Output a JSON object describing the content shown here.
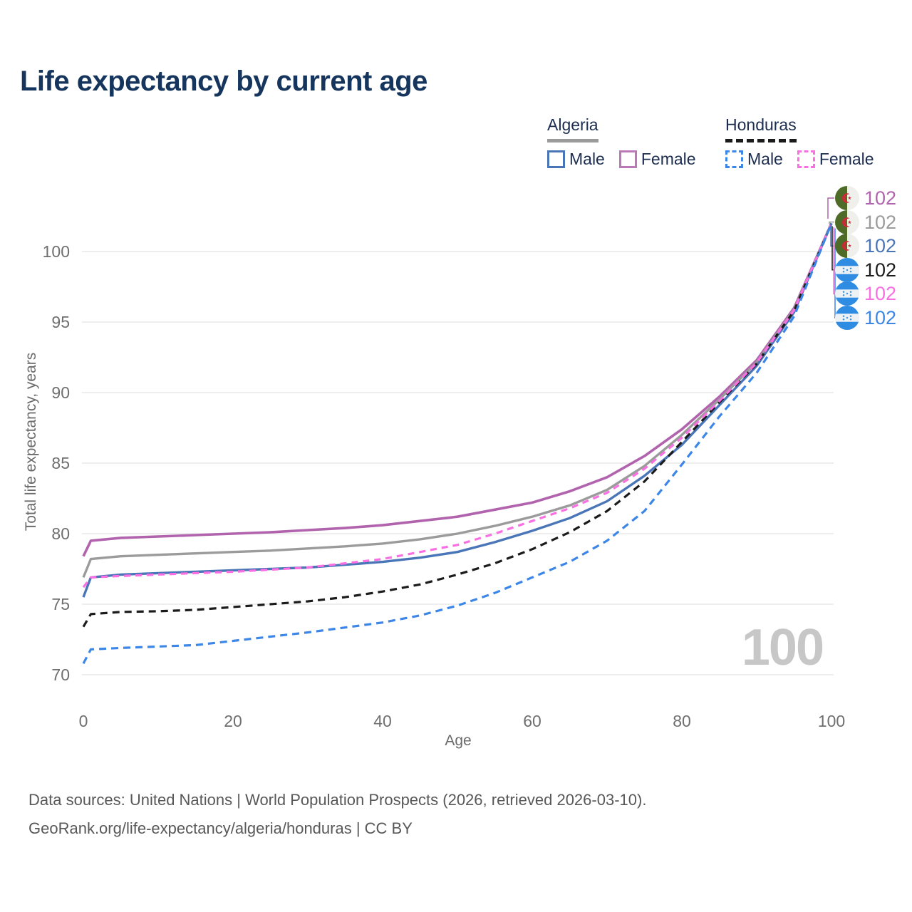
{
  "title": "Life expectancy by current age",
  "legend": {
    "algeria": {
      "label": "Algeria",
      "male_label": "Male",
      "female_label": "Female"
    },
    "honduras": {
      "label": "Honduras",
      "male_label": "Male",
      "female_label": "Female"
    }
  },
  "watermark": "100",
  "footer": {
    "line1": "Data sources: United Nations | World Population Prospects (2026, retrieved 2026-03-10).",
    "line2": "GeoRank.org/life-expectancy/algeria/honduras | CC BY"
  },
  "chart_data": {
    "type": "line",
    "title": "Life expectancy by current age",
    "xlabel": "Age",
    "ylabel": "Total life expectancy, years",
    "xlim": [
      0,
      100
    ],
    "ylim": [
      70,
      102
    ],
    "xticks": [
      0,
      20,
      40,
      60,
      80,
      100
    ],
    "yticks": [
      70,
      75,
      80,
      85,
      90,
      95,
      100
    ],
    "grid": "horizontal",
    "legend_position": "top-right",
    "colors": {
      "algeria_female": "#b164ad",
      "algeria_all": "#9b9b9b",
      "algeria_male": "#4a76b8",
      "honduras_all": "#1b1b1b",
      "honduras_female": "#fa6fe2",
      "honduras_male": "#3c86e8",
      "grid": "#e9e9e9",
      "title_text": "#16355d",
      "axis_text": "#6f6f6f",
      "watermark_text": "#c7c7c7"
    },
    "series": [
      {
        "id": "algeria-female",
        "country": "Algeria",
        "sex": "Female",
        "style": "solid",
        "color": "#b164ad",
        "width": 3.6,
        "dash": null,
        "end_label": "102",
        "flag": "algeria-flag-icon",
        "points": [
          [
            0,
            78.4
          ],
          [
            1,
            79.5
          ],
          [
            5,
            79.7
          ],
          [
            10,
            79.8
          ],
          [
            15,
            79.9
          ],
          [
            20,
            80.0
          ],
          [
            25,
            80.1
          ],
          [
            30,
            80.25
          ],
          [
            35,
            80.4
          ],
          [
            40,
            80.6
          ],
          [
            45,
            80.9
          ],
          [
            50,
            81.2
          ],
          [
            55,
            81.7
          ],
          [
            60,
            82.2
          ],
          [
            65,
            83.0
          ],
          [
            70,
            84.0
          ],
          [
            75,
            85.5
          ],
          [
            80,
            87.4
          ],
          [
            85,
            89.7
          ],
          [
            90,
            92.3
          ],
          [
            95,
            96.0
          ],
          [
            100,
            102
          ]
        ]
      },
      {
        "id": "algeria-all",
        "country": "Algeria",
        "sex": "All",
        "style": "solid",
        "color": "#9b9b9b",
        "width": 3.4,
        "dash": null,
        "end_label": "102",
        "flag": "algeria-flag-icon",
        "points": [
          [
            0,
            76.9
          ],
          [
            1,
            78.2
          ],
          [
            5,
            78.4
          ],
          [
            10,
            78.5
          ],
          [
            15,
            78.6
          ],
          [
            20,
            78.7
          ],
          [
            25,
            78.8
          ],
          [
            30,
            78.95
          ],
          [
            35,
            79.1
          ],
          [
            40,
            79.3
          ],
          [
            45,
            79.6
          ],
          [
            50,
            80.0
          ],
          [
            55,
            80.55
          ],
          [
            60,
            81.2
          ],
          [
            65,
            82.0
          ],
          [
            70,
            83.1
          ],
          [
            75,
            84.8
          ],
          [
            80,
            87.0
          ],
          [
            85,
            89.5
          ],
          [
            90,
            92.15
          ],
          [
            95,
            95.9
          ],
          [
            100,
            102
          ]
        ]
      },
      {
        "id": "algeria-male",
        "country": "Algeria",
        "sex": "Male",
        "style": "solid",
        "color": "#4a76b8",
        "width": 3.4,
        "dash": null,
        "end_label": "102",
        "flag": "algeria-flag-icon",
        "points": [
          [
            0,
            75.5
          ],
          [
            1,
            76.9
          ],
          [
            5,
            77.1
          ],
          [
            10,
            77.2
          ],
          [
            15,
            77.3
          ],
          [
            20,
            77.4
          ],
          [
            25,
            77.5
          ],
          [
            30,
            77.6
          ],
          [
            35,
            77.8
          ],
          [
            40,
            78.0
          ],
          [
            45,
            78.3
          ],
          [
            50,
            78.7
          ],
          [
            55,
            79.4
          ],
          [
            60,
            80.2
          ],
          [
            65,
            81.1
          ],
          [
            70,
            82.3
          ],
          [
            75,
            84.1
          ],
          [
            80,
            86.3
          ],
          [
            85,
            89.1
          ],
          [
            90,
            91.9
          ],
          [
            95,
            95.7
          ],
          [
            100,
            102
          ]
        ]
      },
      {
        "id": "honduras-all",
        "country": "Honduras",
        "sex": "All",
        "style": "dashed",
        "color": "#1b1b1b",
        "width": 3.2,
        "dash": "10 7",
        "end_label": "102",
        "flag": "honduras-flag-icon",
        "points": [
          [
            0,
            73.4
          ],
          [
            1,
            74.3
          ],
          [
            5,
            74.45
          ],
          [
            10,
            74.5
          ],
          [
            15,
            74.6
          ],
          [
            20,
            74.8
          ],
          [
            25,
            75.0
          ],
          [
            30,
            75.2
          ],
          [
            35,
            75.5
          ],
          [
            40,
            75.9
          ],
          [
            45,
            76.4
          ],
          [
            50,
            77.1
          ],
          [
            55,
            77.9
          ],
          [
            60,
            78.9
          ],
          [
            65,
            80.1
          ],
          [
            70,
            81.6
          ],
          [
            75,
            83.7
          ],
          [
            80,
            86.5
          ],
          [
            85,
            89.3
          ],
          [
            90,
            92.05
          ],
          [
            95,
            95.8
          ],
          [
            100,
            102
          ]
        ]
      },
      {
        "id": "honduras-female",
        "country": "Honduras",
        "sex": "Female",
        "style": "dashed",
        "color": "#fa6fe2",
        "width": 3.2,
        "dash": "9 7",
        "end_label": "102",
        "flag": "honduras-flag-icon",
        "points": [
          [
            0,
            76.2
          ],
          [
            1,
            76.9
          ],
          [
            5,
            77.0
          ],
          [
            10,
            77.1
          ],
          [
            15,
            77.2
          ],
          [
            20,
            77.3
          ],
          [
            25,
            77.45
          ],
          [
            30,
            77.6
          ],
          [
            35,
            77.9
          ],
          [
            40,
            78.2
          ],
          [
            45,
            78.7
          ],
          [
            50,
            79.2
          ],
          [
            55,
            80.0
          ],
          [
            60,
            80.9
          ],
          [
            65,
            81.8
          ],
          [
            70,
            82.9
          ],
          [
            75,
            84.6
          ],
          [
            80,
            86.8
          ],
          [
            85,
            89.4
          ],
          [
            90,
            92.1
          ],
          [
            95,
            95.85
          ],
          [
            100,
            102
          ]
        ]
      },
      {
        "id": "honduras-male",
        "country": "Honduras",
        "sex": "Male",
        "style": "dashed",
        "color": "#3c86e8",
        "width": 3.2,
        "dash": "10 7",
        "end_label": "102",
        "flag": "honduras-flag-icon",
        "points": [
          [
            0,
            70.8
          ],
          [
            1,
            71.8
          ],
          [
            5,
            71.9
          ],
          [
            10,
            72.0
          ],
          [
            15,
            72.1
          ],
          [
            20,
            72.4
          ],
          [
            25,
            72.7
          ],
          [
            30,
            73.0
          ],
          [
            35,
            73.35
          ],
          [
            40,
            73.7
          ],
          [
            45,
            74.2
          ],
          [
            50,
            74.9
          ],
          [
            55,
            75.8
          ],
          [
            60,
            76.9
          ],
          [
            65,
            78.0
          ],
          [
            70,
            79.5
          ],
          [
            75,
            81.6
          ],
          [
            80,
            84.9
          ],
          [
            85,
            88.3
          ],
          [
            90,
            91.4
          ],
          [
            95,
            95.4
          ],
          [
            100,
            102
          ]
        ]
      }
    ]
  }
}
